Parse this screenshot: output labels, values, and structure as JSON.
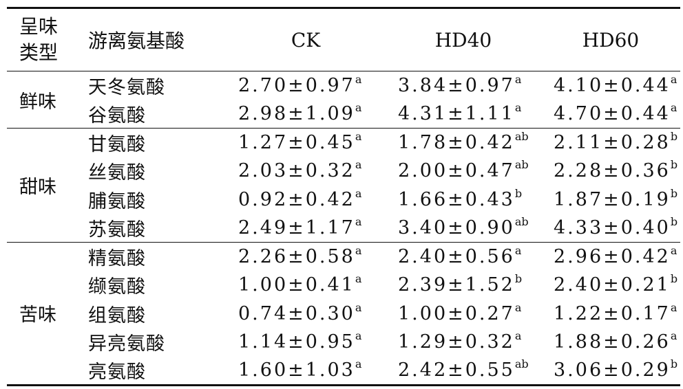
{
  "headers": {
    "type": "呈味类型",
    "type_line1": "呈味",
    "type_line2": "类型",
    "amino_acid": "游离氨基酸",
    "ck": "CK",
    "hd40": "HD40",
    "hd60": "HD60"
  },
  "groups": [
    {
      "taste": "鲜味",
      "rows": [
        {
          "name": "天冬氨酸",
          "ck": "2.70±0.97",
          "ck_sig": "a",
          "hd40": "3.84±0.97",
          "hd40_sig": "a",
          "hd60": "4.10±0.44",
          "hd60_sig": "a"
        },
        {
          "name": "谷氨酸",
          "ck": "2.98±1.09",
          "ck_sig": "a",
          "hd40": "4.31±1.11",
          "hd40_sig": "a",
          "hd60": "4.70±0.44",
          "hd60_sig": "a"
        }
      ]
    },
    {
      "taste": "甜味",
      "rows": [
        {
          "name": "甘氨酸",
          "ck": "1.27±0.45",
          "ck_sig": "a",
          "hd40": "1.78±0.42",
          "hd40_sig": "ab",
          "hd60": "2.11±0.28",
          "hd60_sig": "b"
        },
        {
          "name": "丝氨酸",
          "ck": "2.03±0.32",
          "ck_sig": "a",
          "hd40": "2.00±0.47",
          "hd40_sig": "ab",
          "hd60": "2.28±0.36",
          "hd60_sig": "b"
        },
        {
          "name": "脯氨酸",
          "ck": "0.92±0.42",
          "ck_sig": "a",
          "hd40": "1.66±0.43",
          "hd40_sig": "b",
          "hd60": "1.87±0.19",
          "hd60_sig": "b"
        },
        {
          "name": "苏氨酸",
          "ck": "2.49±1.17",
          "ck_sig": "a",
          "hd40": "3.40±0.90",
          "hd40_sig": "ab",
          "hd60": "4.33±0.40",
          "hd60_sig": "b"
        }
      ]
    },
    {
      "taste": "苦味",
      "rows": [
        {
          "name": "精氨酸",
          "ck": "2.26±0.58",
          "ck_sig": "a",
          "hd40": "2.40±0.56",
          "hd40_sig": "a",
          "hd60": "2.96±0.42",
          "hd60_sig": "a"
        },
        {
          "name": "缬氨酸",
          "ck": "1.00±0.41",
          "ck_sig": "a",
          "hd40": "2.39±1.52",
          "hd40_sig": "b",
          "hd60": "2.40±0.21",
          "hd60_sig": "b"
        },
        {
          "name": "组氨酸",
          "ck": "0.74±0.30",
          "ck_sig": "a",
          "hd40": "1.00±0.27",
          "hd40_sig": "a",
          "hd60": "1.22±0.17",
          "hd60_sig": "a"
        },
        {
          "name": "异亮氨酸",
          "ck": "1.14±0.95",
          "ck_sig": "a",
          "hd40": "1.29±0.32",
          "hd40_sig": "a",
          "hd60": "1.88±0.26",
          "hd60_sig": "a"
        },
        {
          "name": "亮氨酸",
          "ck": "1.60±1.03",
          "ck_sig": "a",
          "hd40": "2.42±0.55",
          "hd40_sig": "ab",
          "hd60": "3.06±0.29",
          "hd60_sig": "b"
        }
      ]
    }
  ]
}
